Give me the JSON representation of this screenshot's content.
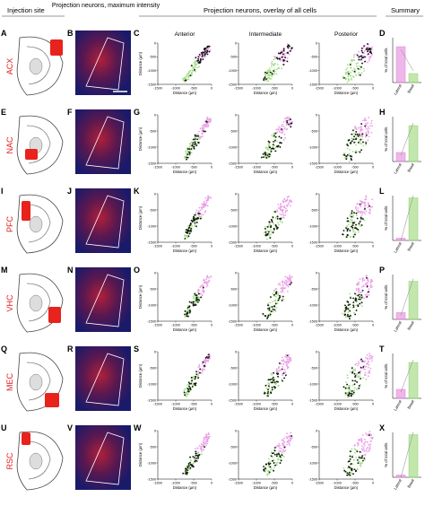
{
  "header": {
    "columns": [
      "Injection site",
      "Projection neurons, maximum intensity",
      "Projection neurons, overlay of all cells",
      "Summary"
    ],
    "subcolumns": [
      "Anterior",
      "Intermediate",
      "Posterior"
    ]
  },
  "axes": {
    "x_label": "Distance (µm)",
    "y_label": "Distance (µm)",
    "xlim": [
      -1500,
      0
    ],
    "ylim": [
      -1500,
      0
    ],
    "xticks": [
      -1500,
      -1000,
      -500,
      0
    ],
    "yticks": [
      0,
      -500,
      -1000,
      -1500
    ],
    "summary_y_label": "% of total cells",
    "summary_categories": [
      "Lateral",
      "Basal"
    ],
    "summary_ylim": [
      0,
      100
    ]
  },
  "rows": [
    {
      "letters": [
        "A",
        "B",
        "C",
        "D"
      ],
      "region": "ACX",
      "summary": [
        80,
        20
      ]
    },
    {
      "letters": [
        "E",
        "F",
        "G",
        "H"
      ],
      "region": "NAC",
      "summary": [
        20,
        80
      ]
    },
    {
      "letters": [
        "I",
        "J",
        "K",
        "L"
      ],
      "region": "PFC",
      "summary": [
        5,
        95
      ]
    },
    {
      "letters": [
        "M",
        "N",
        "O",
        "P"
      ],
      "region": "VHC",
      "summary": [
        15,
        85
      ]
    },
    {
      "letters": [
        "Q",
        "R",
        "S",
        "T"
      ],
      "region": "MEC",
      "summary": [
        20,
        80
      ]
    },
    {
      "letters": [
        "U",
        "V",
        "W",
        "X"
      ],
      "region": "RSC",
      "summary": [
        5,
        95
      ]
    }
  ]
}
